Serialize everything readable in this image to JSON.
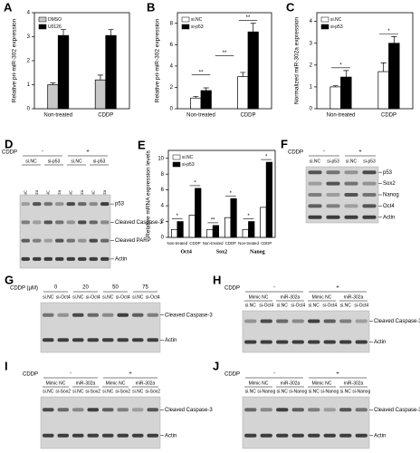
{
  "chart_data": [
    {
      "panel": "A",
      "type": "bar",
      "ylabel": "Relative pri-miR-302 expression",
      "categories": [
        "Non-treated",
        "CDDP"
      ],
      "series": [
        {
          "name": "DMSO",
          "color": "#c8c8c8",
          "values": [
            1,
            1.2
          ],
          "errors": [
            0.07,
            0.2
          ]
        },
        {
          "name": "U0126",
          "color": "#000000",
          "values": [
            3.05,
            3.05
          ],
          "errors": [
            0.25,
            0.25
          ]
        }
      ],
      "ylim": [
        0,
        4
      ],
      "yticks": [
        0,
        1,
        2,
        3,
        4
      ]
    },
    {
      "panel": "B",
      "type": "bar",
      "ylabel": "Relative pri-miR-302 expression",
      "categories": [
        "Non-treated",
        "CDDP"
      ],
      "series": [
        {
          "name": "si.NC",
          "color": "#ffffff",
          "values": [
            1,
            3
          ],
          "errors": [
            0.15,
            0.4
          ]
        },
        {
          "name": "si-p53",
          "color": "#000000",
          "values": [
            1.7,
            7.2
          ],
          "errors": [
            0.25,
            0.8
          ]
        }
      ],
      "ylim": [
        0,
        9
      ],
      "yticks": [
        0,
        2,
        4,
        6,
        8
      ],
      "annotations": [
        "**",
        "**",
        "**"
      ]
    },
    {
      "panel": "C",
      "type": "bar",
      "ylabel": "Normalized miR-302a expression",
      "categories": [
        "Non-treated",
        "CDDP"
      ],
      "series": [
        {
          "name": "si.NC",
          "color": "#ffffff",
          "values": [
            1,
            1.7
          ],
          "errors": [
            0.05,
            0.4
          ]
        },
        {
          "name": "si-p53",
          "color": "#000000",
          "values": [
            1.45,
            3
          ],
          "errors": [
            0.3,
            0.3
          ]
        }
      ],
      "ylim": [
        0,
        4.4
      ],
      "yticks": [
        0,
        1,
        2,
        3,
        4
      ],
      "annotations": [
        "*",
        "*"
      ]
    },
    {
      "panel": "E",
      "type": "bar",
      "ylabel": "Relative mRNA expression levels",
      "groups": [
        "Oct4",
        "Sox2",
        "Nanog"
      ],
      "categories": [
        "Non-treated",
        "CDDP",
        "Non-treated",
        "CDDP",
        "Non-treated",
        "CDDP"
      ],
      "series": [
        {
          "name": "si.NC",
          "color": "#ffffff",
          "values": [
            1,
            2.8,
            1,
            2.5,
            1,
            3.8
          ]
        },
        {
          "name": "si-p53",
          "color": "#000000",
          "values": [
            2,
            6.2,
            1.5,
            4.9,
            2,
            9.5
          ]
        }
      ],
      "ylim": [
        0,
        11
      ],
      "yticks": [
        0,
        2,
        4,
        6,
        8,
        10
      ],
      "annotations": [
        "*",
        "*",
        "**",
        "*",
        "*",
        "*"
      ]
    }
  ],
  "blots": [
    {
      "panel": "D",
      "treatment": "CDDP",
      "conditions": [
        "-",
        "+"
      ],
      "groups": [
        "si.NC",
        "si-p53",
        "si.NC",
        "si-p53"
      ],
      "lanes": [
        "Mimic NC",
        "miR-302a",
        "Mimic NC",
        "miR-302a",
        "Mimic NC",
        "miR-302a",
        "Mimic NC",
        "miR-302a"
      ],
      "bands": [
        "p53",
        "Cleaved Caspase-3",
        "Cleaved PARP",
        "Actin"
      ]
    },
    {
      "panel": "F",
      "treatment": "CDDP",
      "conditions": [
        "-",
        "+"
      ],
      "lanes": [
        "si.NC",
        "si-p53",
        "si.NC",
        "si-p53"
      ],
      "bands": [
        "p53",
        "Sox2",
        "Nanog",
        "Oct4",
        "Actin"
      ]
    },
    {
      "panel": "G",
      "treatment": "CDDP (μM)",
      "conditions": [
        "0",
        "20",
        "50",
        "75"
      ],
      "lanes": [
        "si.NC",
        "si-Oct4",
        "si.NC",
        "si-Oct4",
        "si.NC",
        "si-Oct4",
        "si.NC",
        "si-Oct4"
      ],
      "bands": [
        "Cleaved Caspase-3",
        "Actin"
      ]
    },
    {
      "panel": "H",
      "treatment": "CDDP",
      "conditions": [
        "-",
        "+"
      ],
      "groups": [
        "Mimic NC",
        "miR-302a",
        "Mimic NC",
        "miR-302a"
      ],
      "lanes": [
        "si.NC",
        "si-Oct4",
        "si.NC",
        "si-Oct4",
        "si.NC",
        "si-Oct4",
        "si.NC",
        "si-Oct4"
      ],
      "bands": [
        "Cleaved Caspase-3",
        "Actin"
      ]
    },
    {
      "panel": "I",
      "treatment": "CDDP",
      "conditions": [
        "-",
        "+"
      ],
      "groups": [
        "Mimic NC",
        "miR-302a",
        "Mimic NC",
        "miR-302a"
      ],
      "lanes": [
        "si.NC",
        "si-Sox2",
        "si.NC",
        "si-Sox2",
        "si.NC",
        "si-Sox2",
        "si.NC",
        "si-Sox2"
      ],
      "bands": [
        "Cleaved Caspase-3",
        "Actin"
      ]
    },
    {
      "panel": "J",
      "treatment": "CDDP",
      "conditions": [
        "-",
        "+"
      ],
      "groups": [
        "Mimic NC",
        "miR-302a",
        "Mimic NC",
        "miR-302a"
      ],
      "lanes": [
        "si.NC",
        "si-Nanog",
        "si.NC",
        "si-Nanog",
        "si.NC",
        "si-Nanog",
        "si.NC",
        "si-Nanog"
      ],
      "bands": [
        "Cleaved Caspase-3",
        "Actin"
      ]
    }
  ]
}
